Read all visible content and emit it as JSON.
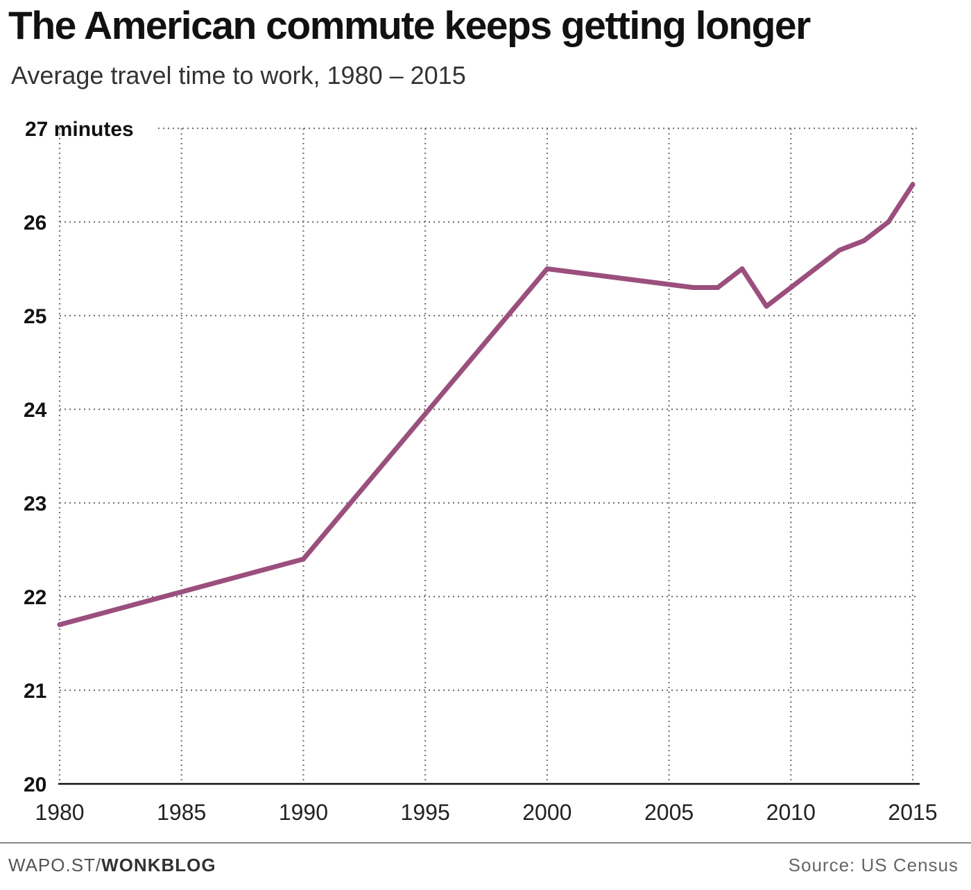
{
  "title": "The American commute keeps getting longer",
  "subtitle": "Average travel time to work, 1980 – 2015",
  "footer": {
    "site": "WAPO.ST/",
    "section": "WONKBLOG",
    "source": "Source: US Census"
  },
  "colors": {
    "line": "#9b4f7d",
    "grid": "#777777",
    "axis": "#111111",
    "text": "#111111"
  },
  "chart_data": {
    "type": "line",
    "x": [
      1980,
      1990,
      2000,
      2006,
      2007,
      2008,
      2009,
      2010,
      2011,
      2012,
      2013,
      2014,
      2015
    ],
    "series": [
      {
        "values": [
          21.7,
          22.4,
          25.5,
          25.3,
          25.3,
          25.5,
          25.1,
          25.3,
          25.5,
          25.7,
          25.8,
          26.0,
          26.4
        ]
      }
    ],
    "xlim": [
      1980,
      2015
    ],
    "ylim": [
      20,
      27
    ],
    "x_ticks": [
      1980,
      1985,
      1990,
      1995,
      2000,
      2005,
      2010,
      2015
    ],
    "x_tick_labels": [
      "1980",
      "1985",
      "1990",
      "1995",
      "2000",
      "2005",
      "2010",
      "2015"
    ],
    "y_ticks": [
      20,
      21,
      22,
      23,
      24,
      25,
      26,
      27
    ],
    "y_tick_labels": [
      "20",
      "21",
      "22",
      "23",
      "24",
      "25",
      "26",
      "27 minutes"
    ],
    "grid": "dotted"
  }
}
